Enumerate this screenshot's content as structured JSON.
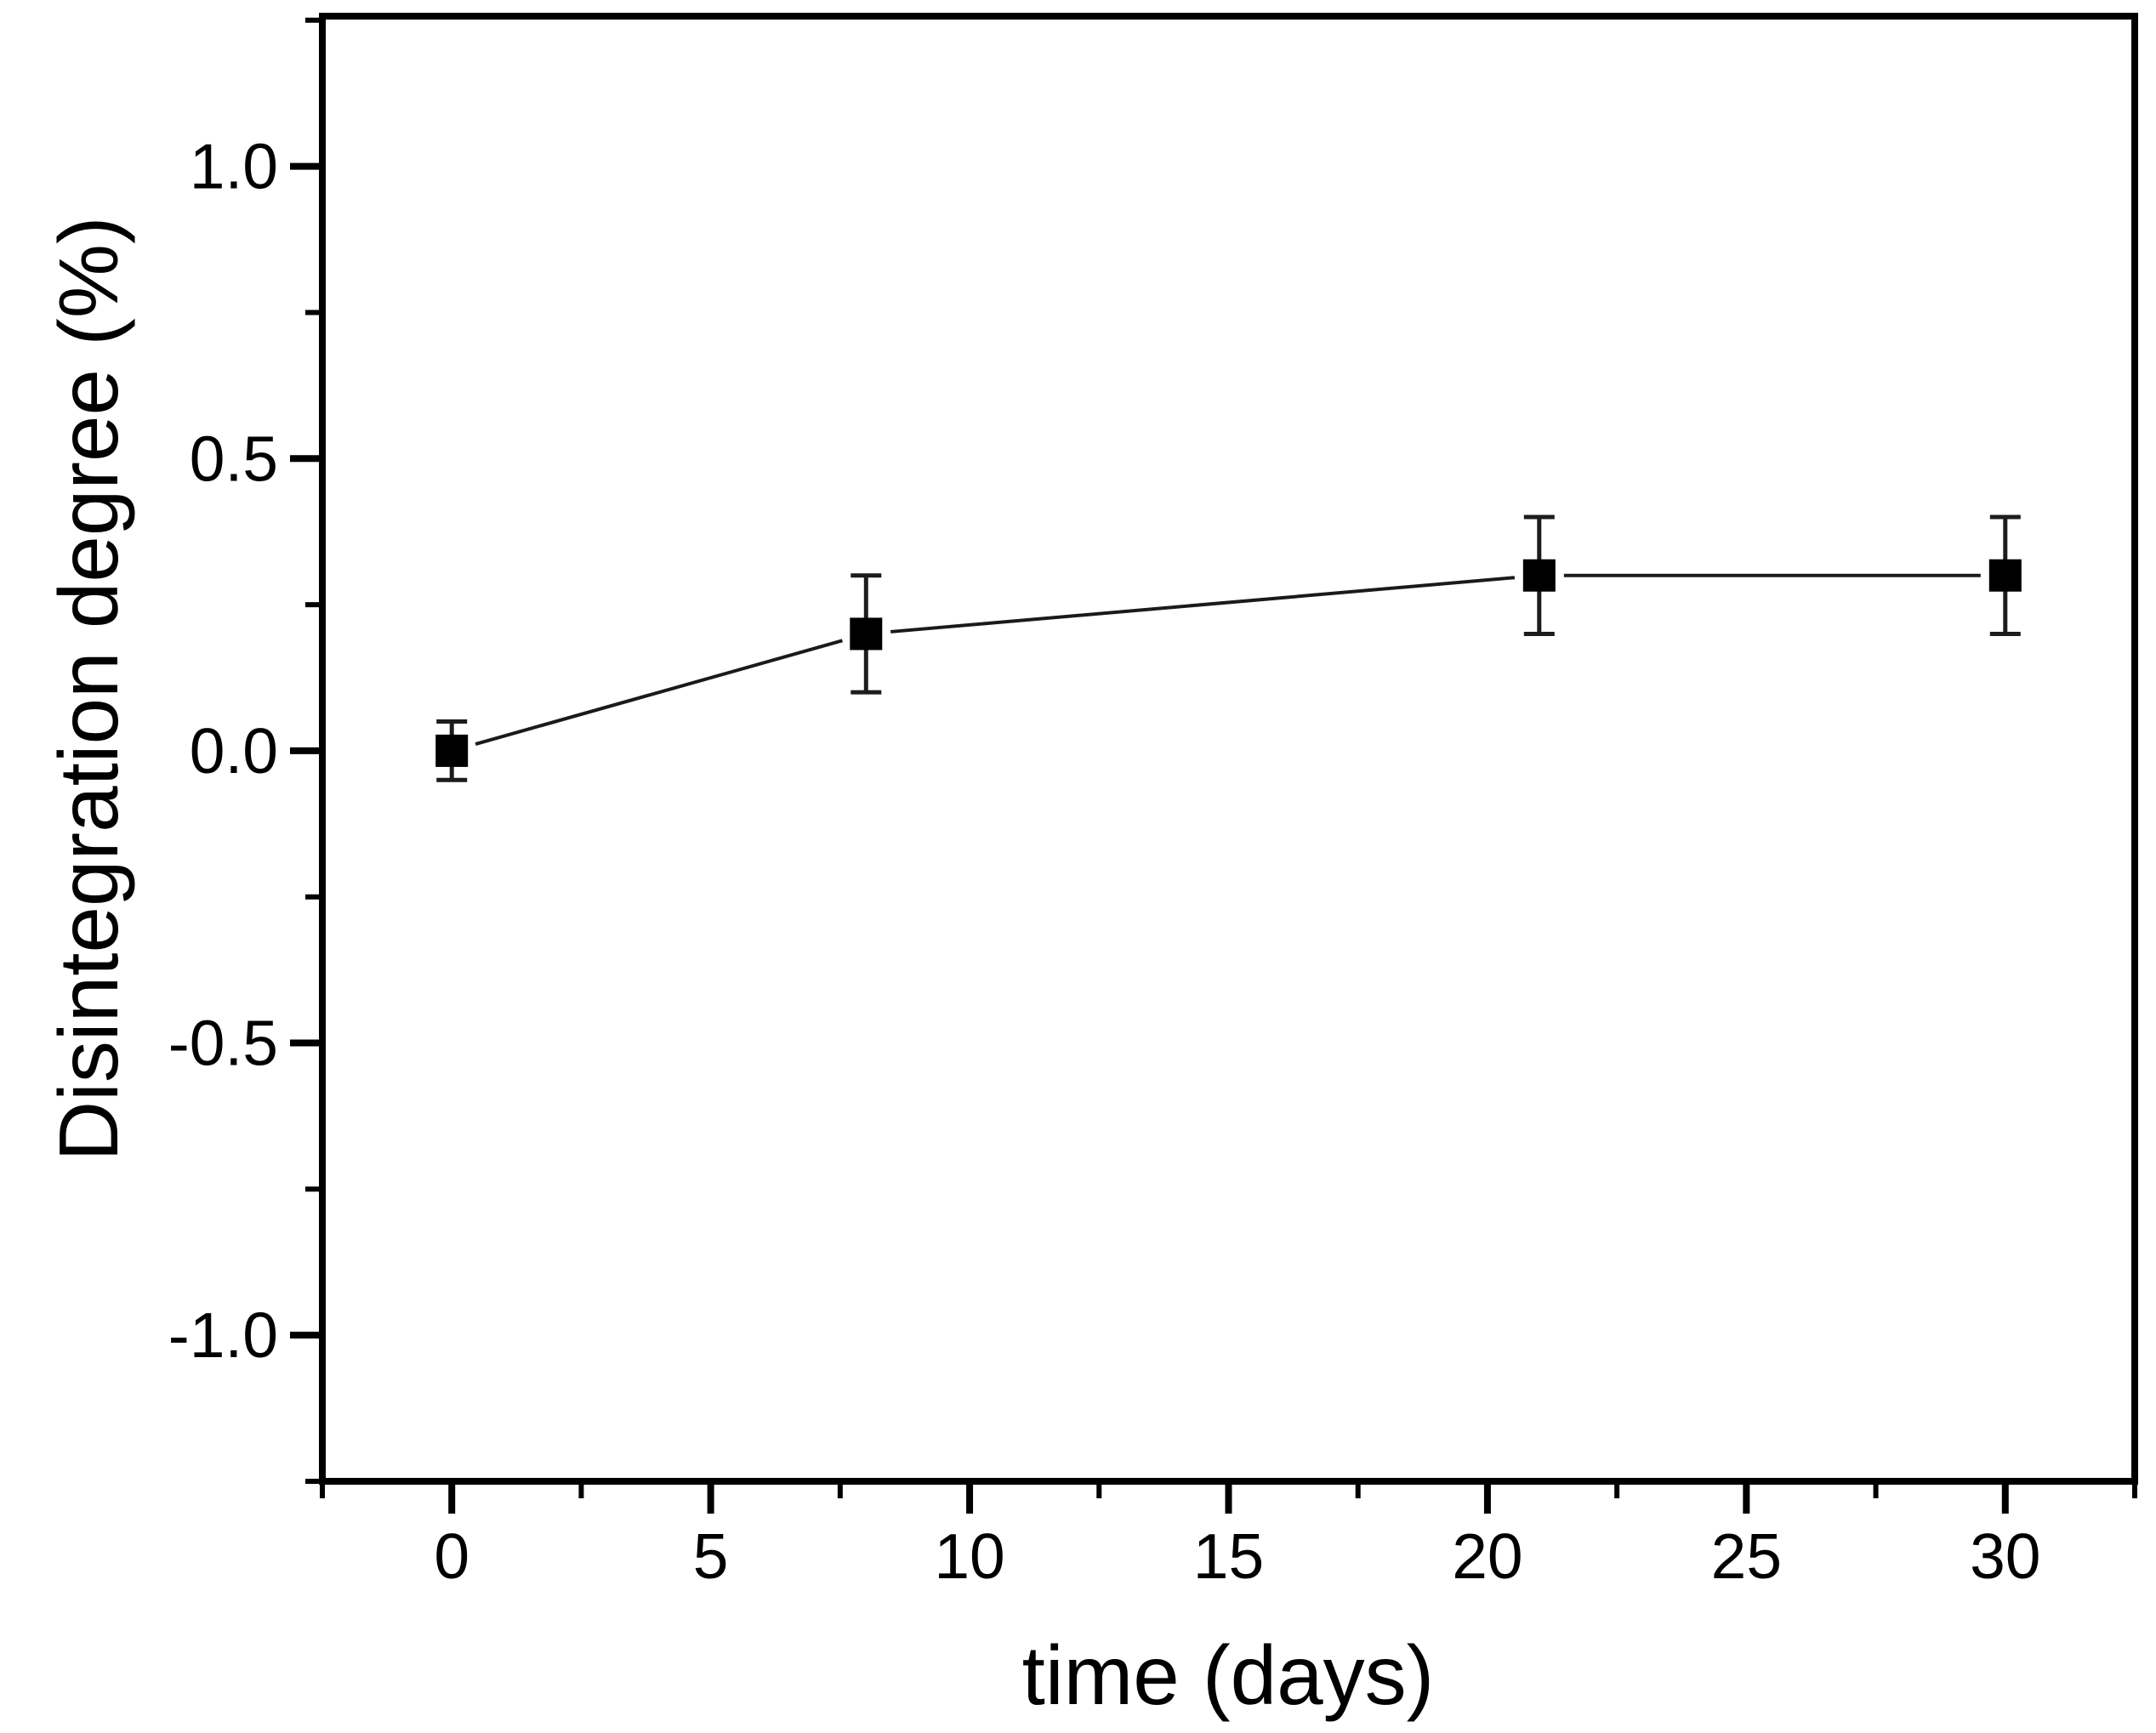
{
  "chart_data": {
    "type": "line",
    "title": "",
    "xlabel": "time (days)",
    "ylabel": "Disintegration degree (%)",
    "series": [
      {
        "name": "disintegration degree",
        "x": [
          0,
          8,
          21,
          30
        ],
        "y": [
          0.0,
          0.2,
          0.3,
          0.3
        ],
        "y_err": [
          0.05,
          0.1,
          0.1,
          0.1
        ],
        "marker": "filled-square",
        "line_style": "solid"
      }
    ],
    "xlim": [
      -2.5,
      32.5
    ],
    "ylim": [
      -1.25,
      1.257
    ],
    "x_ticks": {
      "major": [
        0,
        5,
        10,
        15,
        20,
        25,
        30
      ],
      "labels": [
        "0",
        "5",
        "10",
        "15",
        "20",
        "25",
        "30"
      ],
      "minor_step": 2.5
    },
    "y_ticks": {
      "major": [
        1.0,
        0.5,
        0.0,
        -0.5,
        -1.0
      ],
      "labels": [
        "1.0",
        "0.5",
        "0.0",
        "-0.5",
        "-1.0"
      ],
      "minor_step": 0.25
    },
    "grid": false,
    "legend": "none",
    "colors": {
      "background": "#ffffff",
      "axis": "#000000",
      "text": "#000000",
      "series_line": "#1a1a1a",
      "series_marker": "#000000",
      "error_bar": "#1c1c1c"
    }
  }
}
